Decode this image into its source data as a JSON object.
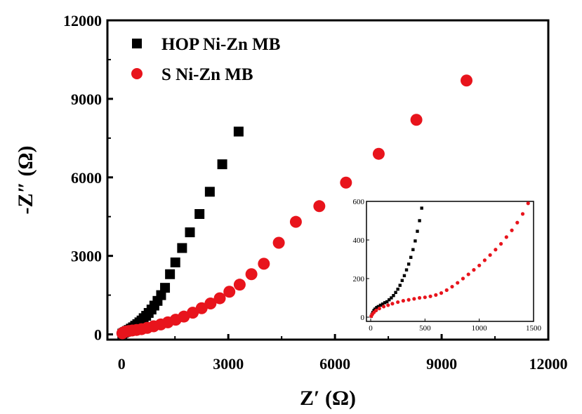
{
  "chart_data": [
    {
      "type": "scatter",
      "xlabel": "Z′ (Ω)",
      "ylabel": "-Z″ (Ω)",
      "xlim": [
        -400,
        12000
      ],
      "ylim": [
        -200,
        12000
      ],
      "xticks": [
        "0",
        "3000",
        "6000",
        "9000",
        "12000"
      ],
      "yticks": [
        "0",
        "3000",
        "6000",
        "9000",
        "12000"
      ],
      "legend_position": "top-left",
      "series": [
        {
          "name": "HOP Ni-Zn MB",
          "marker": "square",
          "color": "#000000",
          "x": [
            20,
            60,
            100,
            150,
            200,
            260,
            320,
            380,
            440,
            500,
            560,
            620,
            690,
            760,
            840,
            920,
            1010,
            1110,
            1220,
            1360,
            1510,
            1700,
            1920,
            2190,
            2480,
            2830,
            3290
          ],
          "y": [
            30,
            60,
            90,
            130,
            170,
            220,
            270,
            330,
            390,
            460,
            530,
            620,
            710,
            820,
            950,
            1100,
            1280,
            1500,
            1780,
            2300,
            2750,
            3300,
            3900,
            4600,
            5450,
            6500,
            7750
          ]
        },
        {
          "name": "S Ni-Zn MB",
          "marker": "circle",
          "color": "#e8141c",
          "x": [
            20,
            60,
            120,
            200,
            300,
            420,
            560,
            720,
            900,
            1100,
            1300,
            1520,
            1750,
            2000,
            2250,
            2500,
            2760,
            3030,
            3320,
            3650,
            4000,
            4420,
            4900,
            5560,
            6310,
            7230,
            8290,
            9700
          ],
          "y": [
            40,
            80,
            110,
            130,
            150,
            170,
            200,
            250,
            310,
            380,
            460,
            560,
            680,
            830,
            1000,
            1180,
            1380,
            1630,
            1900,
            2300,
            2700,
            3500,
            4300,
            4900,
            5800,
            6900,
            8200,
            9700
          ]
        }
      ]
    },
    {
      "type": "scatter",
      "role": "inset",
      "xlim": [
        0,
        1500
      ],
      "ylim": [
        0,
        600
      ],
      "xticks": [
        "0",
        "500",
        "1000",
        "1500"
      ],
      "yticks": [
        "0",
        "200",
        "400",
        "600"
      ],
      "series": [
        {
          "marker": "square",
          "color": "#000000",
          "x": [
            5,
            12,
            20,
            30,
            40,
            55,
            70,
            90,
            110,
            130,
            150,
            170,
            190,
            210,
            230,
            250,
            270,
            290,
            310,
            330,
            350,
            370,
            390,
            410,
            430,
            450,
            470
          ],
          "y": [
            5,
            15,
            25,
            35,
            42,
            50,
            55,
            62,
            68,
            75,
            80,
            90,
            100,
            112,
            128,
            145,
            165,
            190,
            215,
            245,
            275,
            310,
            350,
            395,
            445,
            500,
            565
          ]
        },
        {
          "marker": "circle",
          "color": "#e8141c",
          "x": [
            5,
            15,
            30,
            50,
            80,
            120,
            160,
            200,
            250,
            300,
            350,
            400,
            450,
            500,
            550,
            600,
            650,
            700,
            750,
            800,
            850,
            900,
            950,
            1000,
            1050,
            1100,
            1150,
            1200,
            1250,
            1300,
            1350,
            1400,
            1450
          ],
          "y": [
            5,
            15,
            25,
            35,
            45,
            55,
            62,
            70,
            78,
            85,
            90,
            95,
            100,
            103,
            108,
            115,
            125,
            140,
            158,
            178,
            200,
            222,
            245,
            268,
            295,
            322,
            350,
            380,
            415,
            450,
            490,
            535,
            590
          ]
        }
      ]
    }
  ]
}
